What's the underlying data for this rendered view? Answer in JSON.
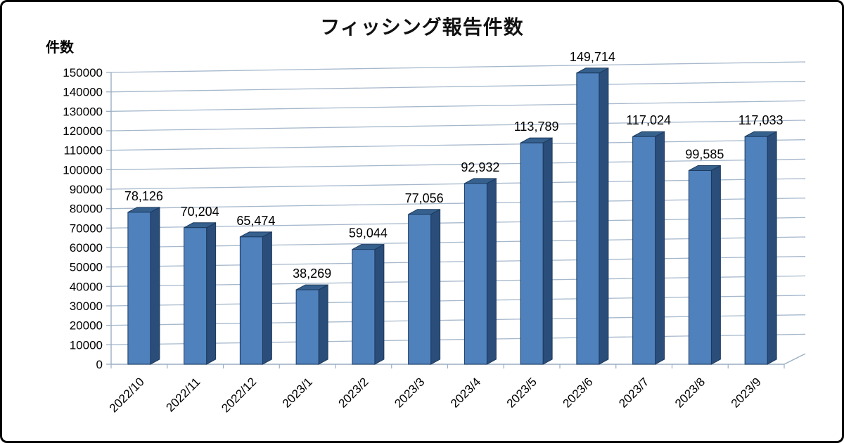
{
  "frame": {
    "background": "#ffffff",
    "border_color": "#000000"
  },
  "chart_data": {
    "type": "bar",
    "style": "3d-column",
    "title": "フィッシング報告件数",
    "ylabel": "件数",
    "xlabel": "",
    "legend": "none",
    "grid": true,
    "categories": [
      "2022/10",
      "2022/11",
      "2022/12",
      "2023/1",
      "2023/2",
      "2023/3",
      "2023/4",
      "2023/5",
      "2023/6",
      "2023/7",
      "2023/8",
      "2023/9"
    ],
    "values": [
      78126,
      70204,
      65474,
      38269,
      59044,
      77056,
      92932,
      113789,
      149714,
      117024,
      99585,
      117033
    ],
    "data_labels": [
      "78,126",
      "70,204",
      "65,474",
      "38,269",
      "59,044",
      "77,056",
      "92,932",
      "113,789",
      "149,714",
      "117,024",
      "99,585",
      "117,033"
    ],
    "ylim": [
      0,
      150000
    ],
    "ytick_step": 10000,
    "ytick_labels": [
      "0",
      "10000",
      "20000",
      "30000",
      "40000",
      "50000",
      "60000",
      "70000",
      "80000",
      "90000",
      "100000",
      "110000",
      "120000",
      "130000",
      "140000",
      "150000"
    ],
    "colors": {
      "bar_front": "#4f81bd",
      "bar_top": "#36618e",
      "bar_side": "#2a4d79",
      "bar_outline": "#1c3a5e",
      "gridline": "#a6b8cc",
      "axis": "#9aaec4",
      "text": "#000000"
    }
  }
}
